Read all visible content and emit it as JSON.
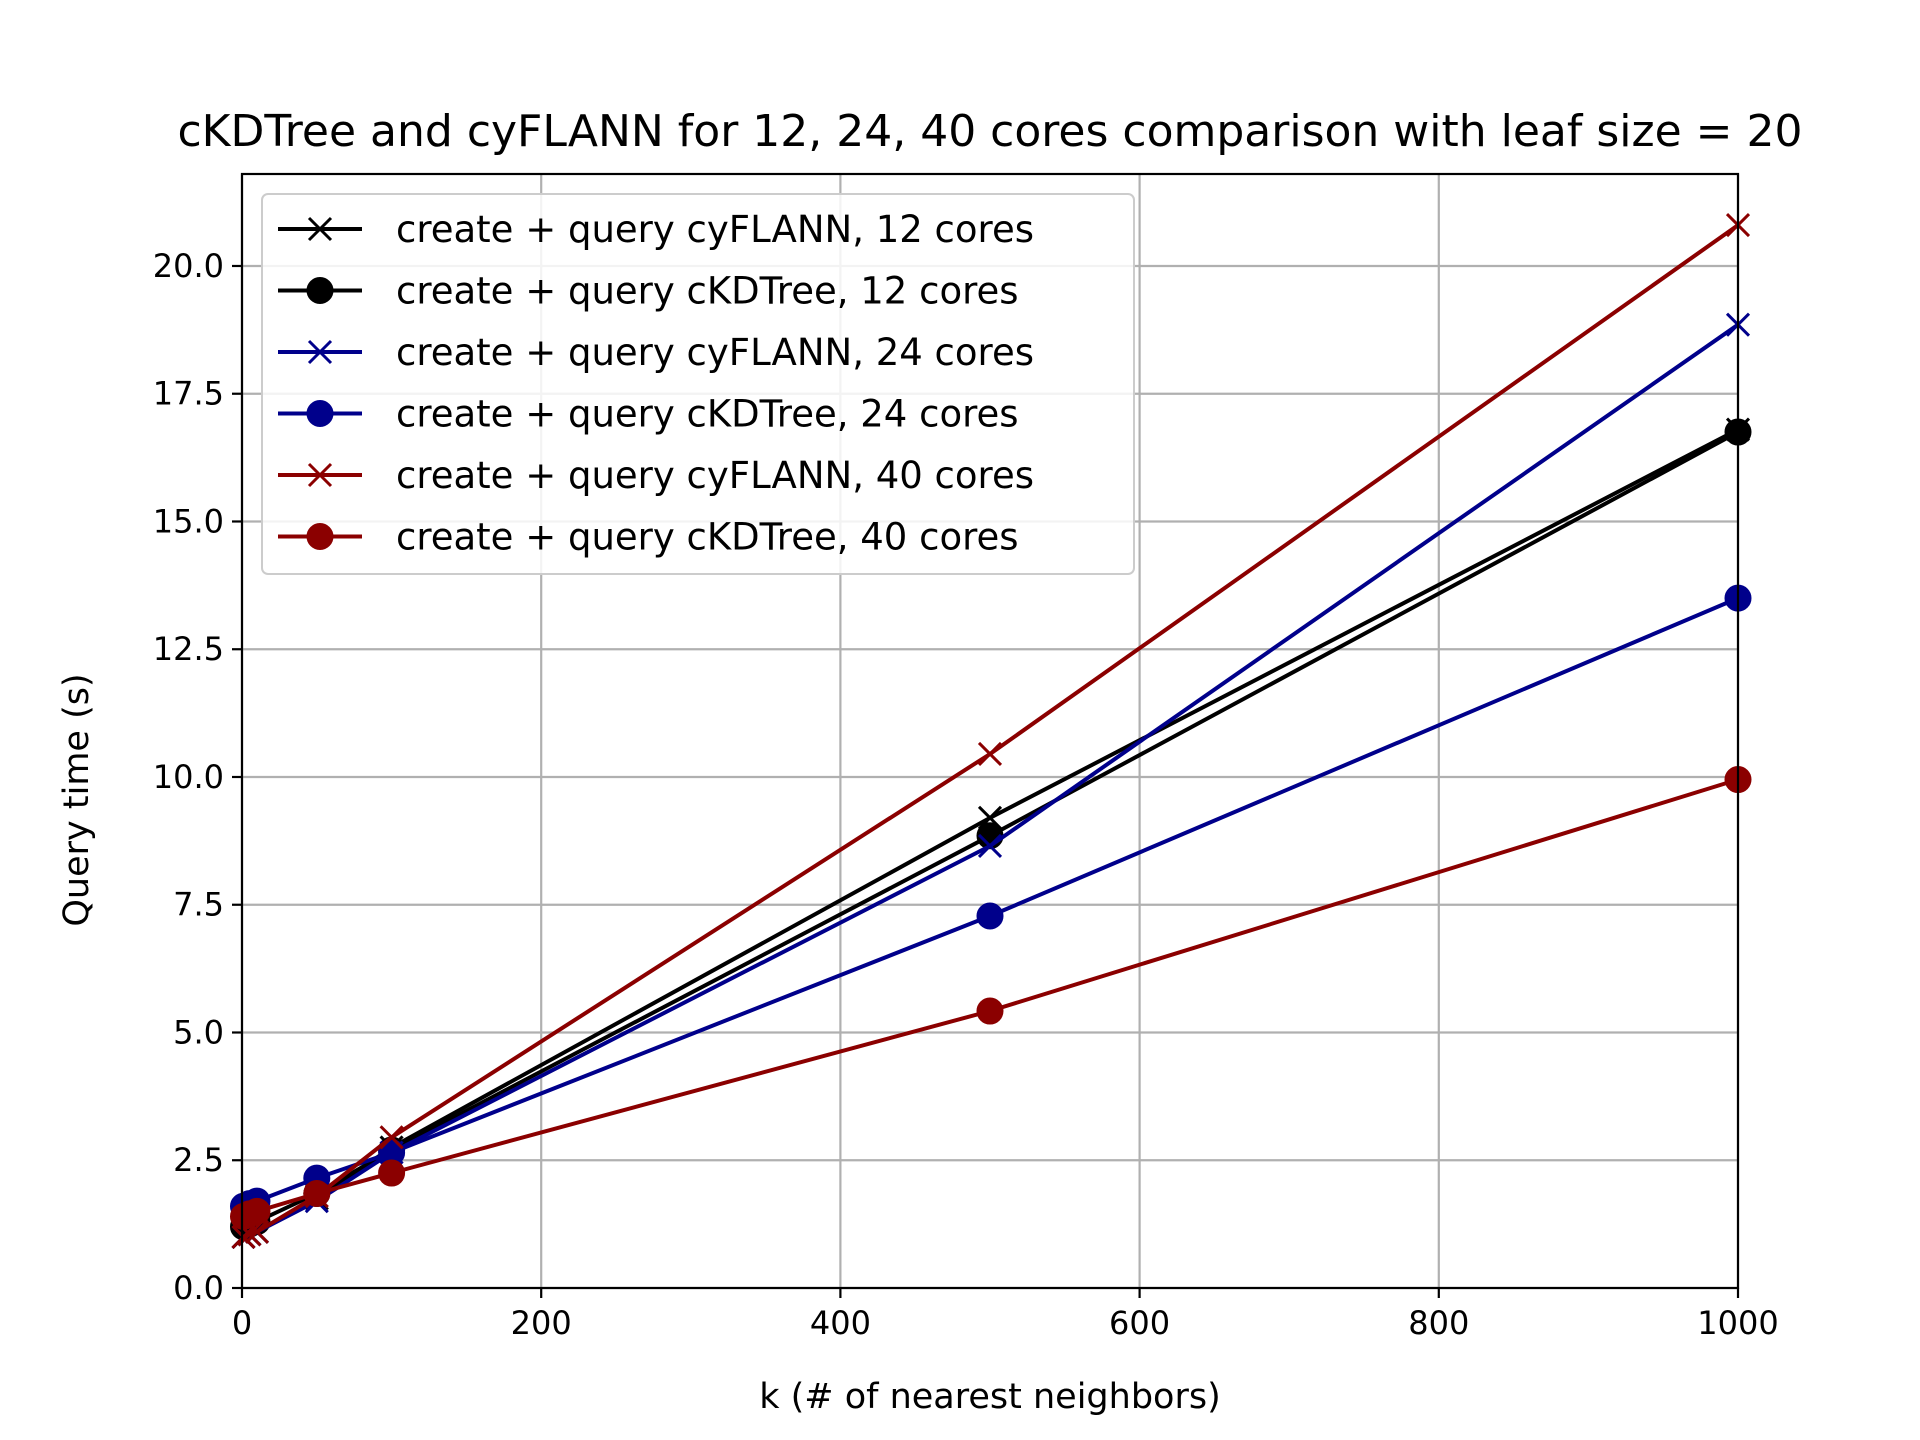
{
  "chart_data": {
    "type": "line",
    "title": "cKDTree and cyFLANN for 12, 24, 40 cores comparison with leaf size = 20",
    "xlabel": "k (# of nearest neighbors)",
    "ylabel": "Query time (s)",
    "xlim": [
      0,
      1000
    ],
    "ylim": [
      0,
      21.8
    ],
    "xticks": [
      0,
      200,
      400,
      600,
      800,
      1000
    ],
    "xtick_labels": [
      "0",
      "200",
      "400",
      "600",
      "800",
      "1000"
    ],
    "yticks": [
      0,
      2.5,
      5,
      7.5,
      10,
      12.5,
      15,
      17.5,
      20
    ],
    "ytick_labels": [
      "0.0",
      "2.5",
      "5.0",
      "7.5",
      "10.0",
      "12.5",
      "15.0",
      "17.5",
      "20.0"
    ],
    "grid": true,
    "legend_position": "upper-left",
    "x": [
      1,
      5,
      10,
      50,
      100,
      500,
      1000
    ],
    "series": [
      {
        "name": "create + query cyFLANN, 12 cores",
        "color": "#000000",
        "marker": "x",
        "values": [
          1.0,
          1.05,
          1.1,
          1.75,
          2.75,
          9.2,
          16.8
        ]
      },
      {
        "name": "create + query cKDTree, 12 cores",
        "color": "#000000",
        "marker": "o",
        "values": [
          1.2,
          1.25,
          1.3,
          1.85,
          2.7,
          8.85,
          16.75
        ]
      },
      {
        "name": "create + query cyFLANN, 24 cores",
        "color": "#00008b",
        "marker": "x",
        "values": [
          1.0,
          1.05,
          1.1,
          1.7,
          2.65,
          8.65,
          18.85
        ]
      },
      {
        "name": "create + query cKDTree, 24 cores",
        "color": "#00008b",
        "marker": "o",
        "values": [
          1.6,
          1.65,
          1.7,
          2.15,
          2.65,
          7.28,
          13.5
        ]
      },
      {
        "name": "create + query cyFLANN, 40 cores",
        "color": "#8b0000",
        "marker": "x",
        "values": [
          1.0,
          1.05,
          1.1,
          1.8,
          2.95,
          10.45,
          20.8
        ]
      },
      {
        "name": "create + query cKDTree, 40 cores",
        "color": "#8b0000",
        "marker": "o",
        "values": [
          1.4,
          1.45,
          1.5,
          1.85,
          2.25,
          5.42,
          9.95
        ]
      }
    ]
  }
}
